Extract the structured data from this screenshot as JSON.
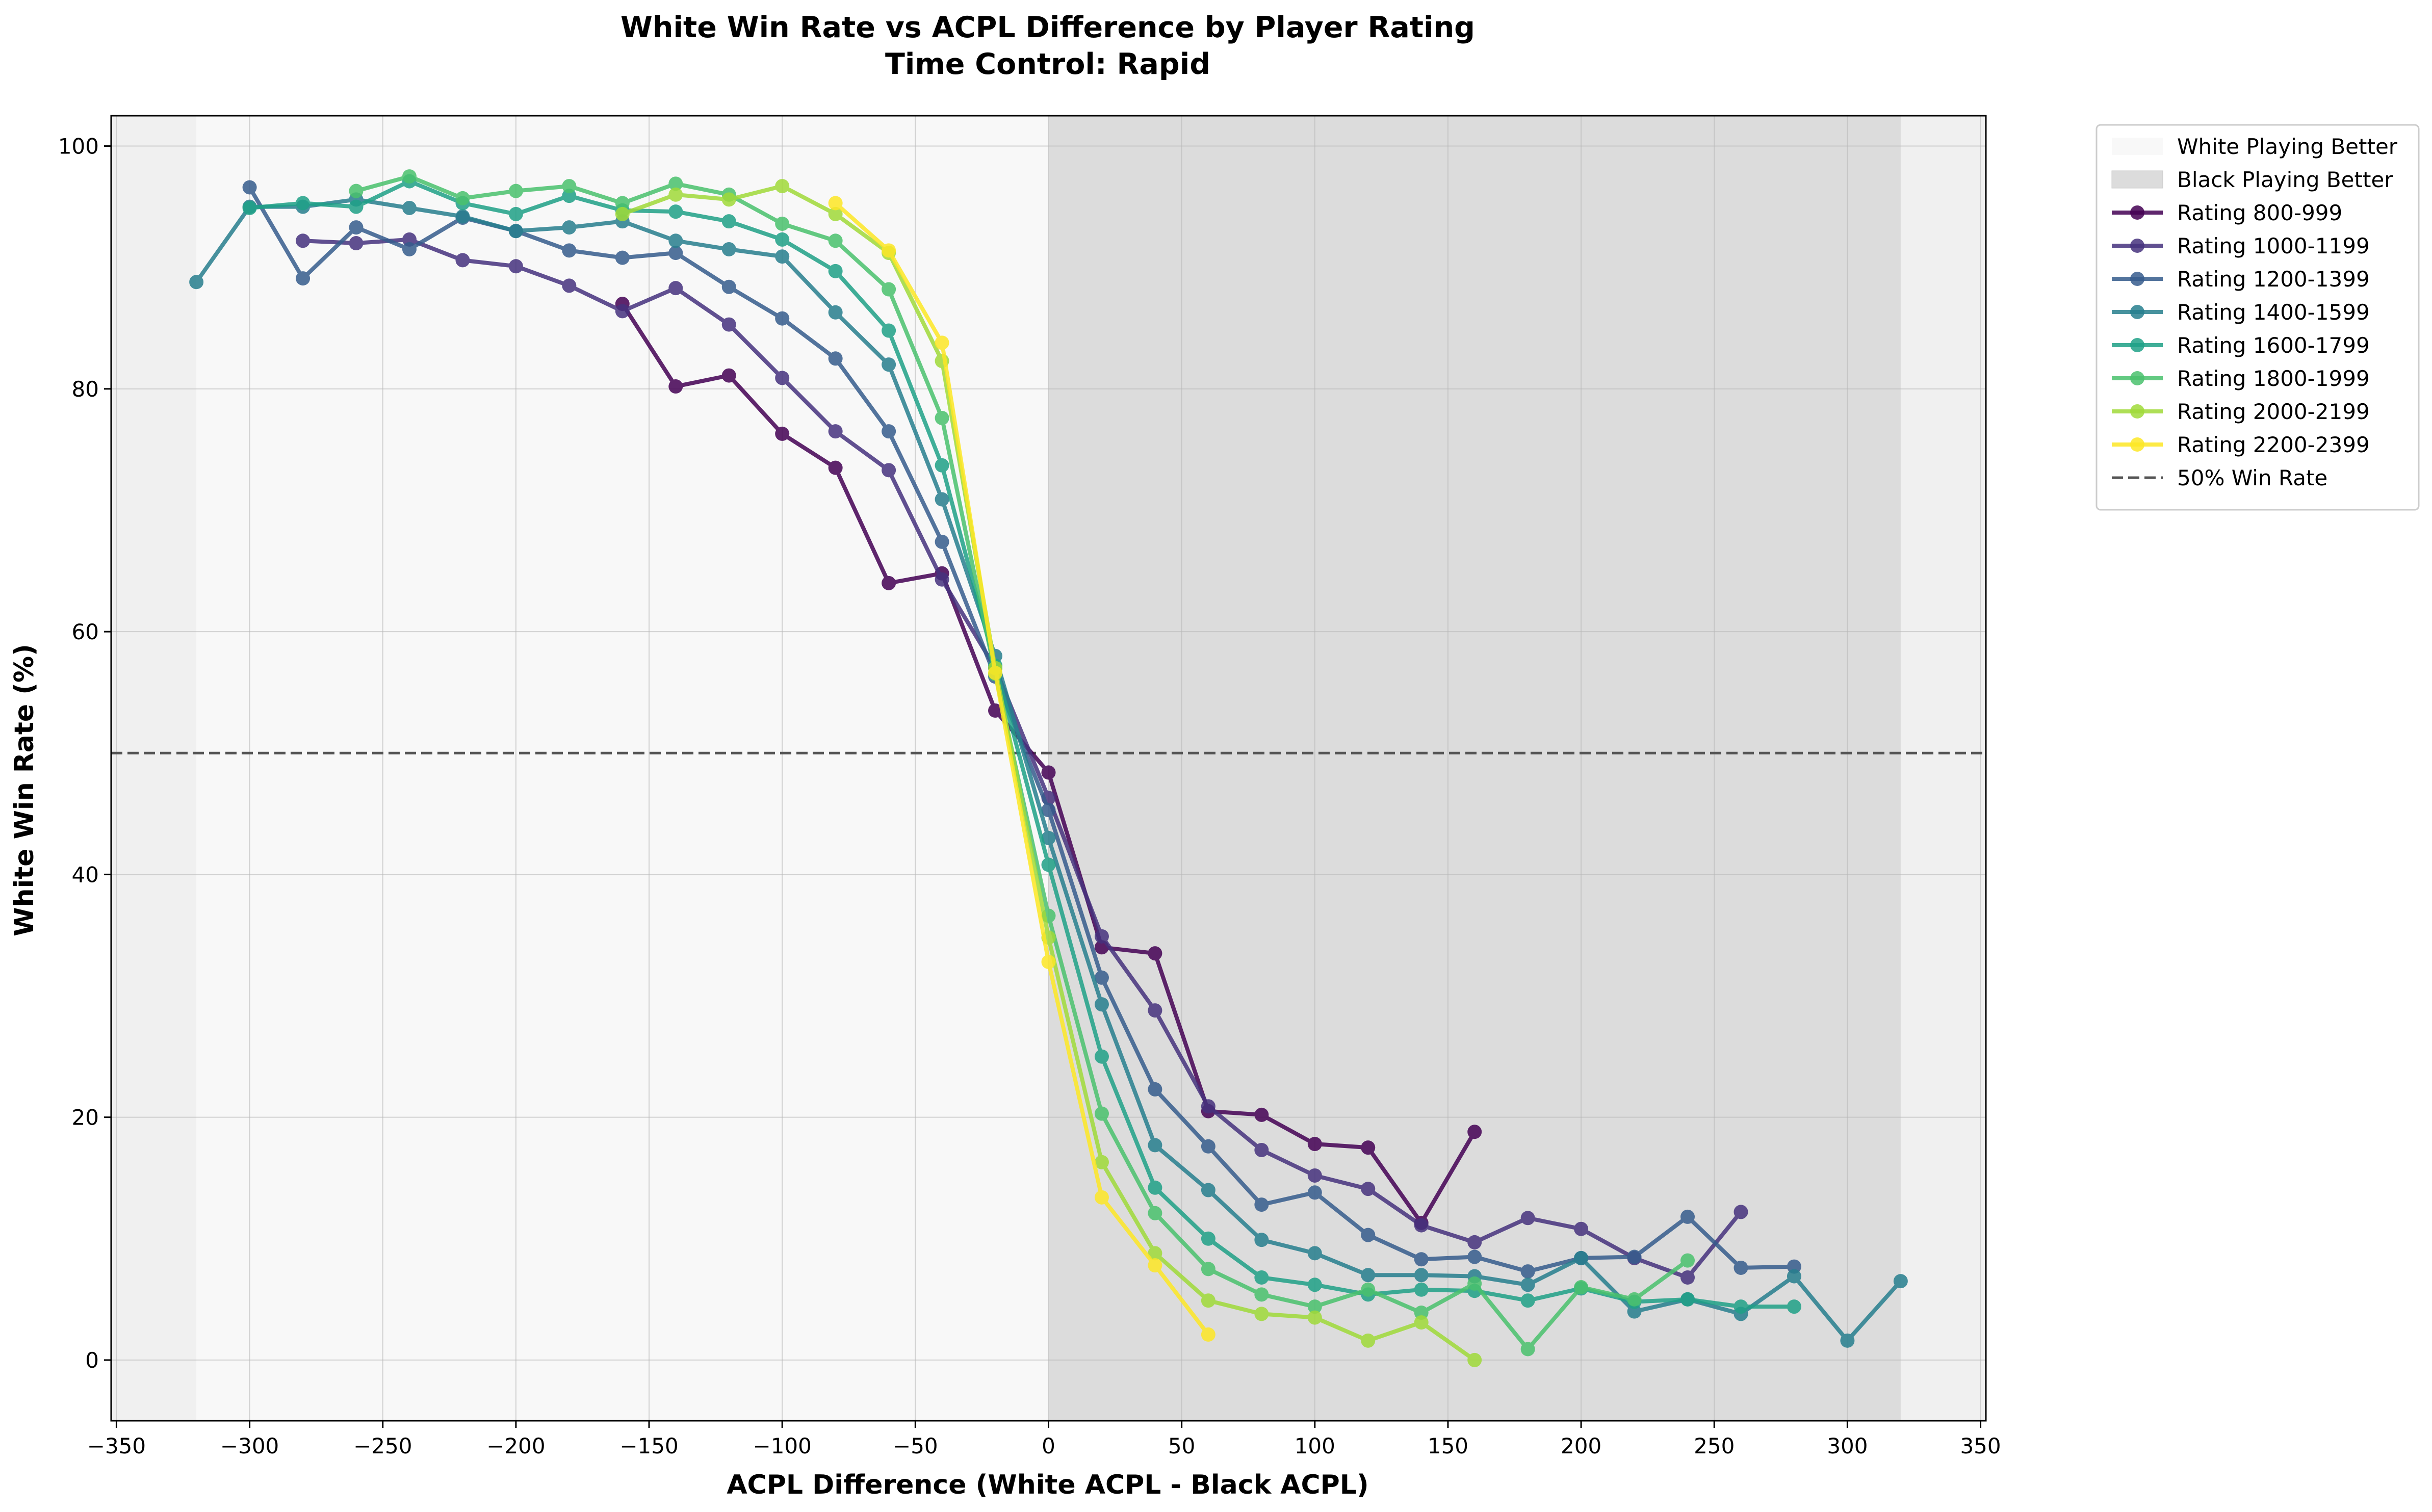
{
  "chart_data": {
    "type": "line",
    "title": "White Win Rate vs ACPL Difference by Player Rating",
    "subtitle": "Time Control: Rapid",
    "xlabel": "ACPL Difference (White ACPL - Black ACPL)",
    "ylabel": "White Win Rate (%)",
    "xlim": [
      -352,
      352
    ],
    "ylim": [
      -5,
      102.5
    ],
    "xticks": [
      -350,
      -300,
      -250,
      -200,
      -150,
      -100,
      -50,
      0,
      50,
      100,
      150,
      200,
      250,
      300,
      350
    ],
    "yticks": [
      0,
      20,
      40,
      60,
      80,
      100
    ],
    "grid": true,
    "legend_position": "outside-right",
    "regions": [
      {
        "name": "White Playing Better",
        "x_range": [
          -320,
          0
        ],
        "color": "#f8f8f8"
      },
      {
        "name": "Black Playing Better",
        "x_range": [
          0,
          320
        ],
        "color": "#dcdcdc"
      }
    ],
    "reference_line": {
      "name": "50% Win Rate",
      "y": 50,
      "color": "#555555"
    },
    "series": [
      {
        "name": "Rating 800-999",
        "color": "#440154",
        "x": [
          -160,
          -140,
          -120,
          -100,
          -80,
          -60,
          -40,
          -20,
          0,
          20,
          40,
          60,
          80,
          100,
          120,
          140,
          160
        ],
        "y": [
          87.0,
          80.2,
          81.1,
          76.3,
          73.5,
          64.0,
          64.8,
          53.5,
          48.4,
          34.0,
          33.5,
          20.5,
          20.2,
          17.8,
          17.5,
          11.3,
          18.8
        ]
      },
      {
        "name": "Rating 1000-1199",
        "color": "#46327e",
        "x": [
          -280,
          -260,
          -240,
          -220,
          -200,
          -180,
          -160,
          -140,
          -120,
          -100,
          -80,
          -60,
          -40,
          -20,
          0,
          20,
          40,
          60,
          80,
          100,
          120,
          140,
          160,
          180,
          200,
          220,
          240,
          260
        ],
        "y": [
          92.2,
          92.0,
          92.3,
          90.6,
          90.1,
          88.5,
          86.4,
          88.3,
          85.3,
          80.9,
          76.5,
          73.3,
          64.3,
          57.0,
          46.3,
          34.9,
          28.8,
          20.9,
          17.3,
          15.2,
          14.1,
          11.1,
          9.7,
          11.7,
          10.8,
          8.4,
          6.8,
          12.2
        ]
      },
      {
        "name": "Rating 1200-1399",
        "color": "#365c8d",
        "x": [
          -300,
          -280,
          -260,
          -240,
          -220,
          -200,
          -180,
          -160,
          -140,
          -120,
          -100,
          -80,
          -60,
          -40,
          -20,
          0,
          20,
          40,
          60,
          80,
          100,
          120,
          140,
          160,
          180,
          200,
          220,
          240,
          260,
          280
        ],
        "y": [
          96.6,
          89.1,
          93.3,
          91.5,
          94.1,
          93.0,
          91.4,
          90.8,
          91.2,
          88.4,
          85.8,
          82.5,
          76.5,
          67.4,
          56.3,
          45.3,
          31.5,
          22.3,
          17.6,
          12.8,
          13.8,
          10.3,
          8.3,
          8.5,
          7.3,
          8.4,
          8.5,
          11.8,
          7.6,
          7.7
        ]
      },
      {
        "name": "Rating 1400-1599",
        "color": "#277f8e",
        "x": [
          -320,
          -300,
          -280,
          -260,
          -240,
          -220,
          -200,
          -180,
          -160,
          -140,
          -120,
          -100,
          -80,
          -60,
          -40,
          -20,
          0,
          20,
          40,
          60,
          80,
          100,
          120,
          140,
          160,
          180,
          200,
          220,
          240,
          260,
          280,
          300,
          320
        ],
        "y": [
          88.8,
          95.0,
          95.0,
          95.6,
          94.9,
          94.2,
          93.0,
          93.3,
          93.8,
          92.2,
          91.5,
          90.9,
          86.3,
          82.0,
          70.9,
          58.0,
          43.0,
          29.3,
          17.7,
          14.0,
          9.9,
          8.8,
          7.0,
          7.0,
          6.9,
          6.2,
          8.4,
          4.0,
          5.0,
          3.8,
          6.9,
          1.6,
          6.5
        ]
      },
      {
        "name": "Rating 1600-1799",
        "color": "#1fa187",
        "x": [
          -300,
          -280,
          -260,
          -240,
          -220,
          -200,
          -180,
          -160,
          -140,
          -120,
          -100,
          -80,
          -60,
          -40,
          -20,
          0,
          20,
          40,
          60,
          80,
          100,
          120,
          140,
          160,
          180,
          200,
          220,
          240,
          260,
          280
        ],
        "y": [
          94.9,
          95.3,
          95.0,
          97.1,
          95.3,
          94.4,
          95.9,
          94.7,
          94.6,
          93.8,
          92.3,
          89.7,
          84.8,
          73.7,
          57.2,
          40.8,
          25.0,
          14.2,
          10.0,
          6.8,
          6.2,
          5.4,
          5.8,
          5.7,
          4.9,
          5.9,
          4.8,
          5.0,
          4.4,
          4.4
        ]
      },
      {
        "name": "Rating 1800-1999",
        "color": "#4ac16d",
        "x": [
          -260,
          -240,
          -220,
          -200,
          -180,
          -160,
          -140,
          -120,
          -100,
          -80,
          -60,
          -40,
          -20,
          0,
          20,
          40,
          60,
          80,
          100,
          120,
          140,
          160,
          180,
          200,
          220,
          240
        ],
        "y": [
          96.3,
          97.5,
          95.7,
          96.3,
          96.7,
          95.3,
          96.9,
          96.0,
          93.6,
          92.2,
          88.2,
          77.6,
          56.5,
          36.6,
          20.3,
          12.1,
          7.5,
          5.4,
          4.4,
          5.8,
          3.9,
          6.3,
          0.9,
          6.0,
          5.0,
          8.2
        ]
      },
      {
        "name": "Rating 2000-2199",
        "color": "#a0da39",
        "x": [
          -160,
          -140,
          -120,
          -100,
          -80,
          -60,
          -40,
          -20,
          0,
          20,
          40,
          60,
          80,
          100,
          120,
          140,
          160
        ],
        "y": [
          94.4,
          96.0,
          95.6,
          96.7,
          94.4,
          91.2,
          82.3,
          57.0,
          34.8,
          16.3,
          8.8,
          4.9,
          3.8,
          3.5,
          1.6,
          3.1,
          0.0
        ]
      },
      {
        "name": "Rating 2200-2399",
        "color": "#fde725",
        "x": [
          -80,
          -60,
          -40,
          -20,
          0,
          20,
          40,
          60
        ],
        "y": [
          95.3,
          91.4,
          83.8,
          56.6,
          32.8,
          13.4,
          7.8,
          2.1
        ]
      }
    ]
  }
}
